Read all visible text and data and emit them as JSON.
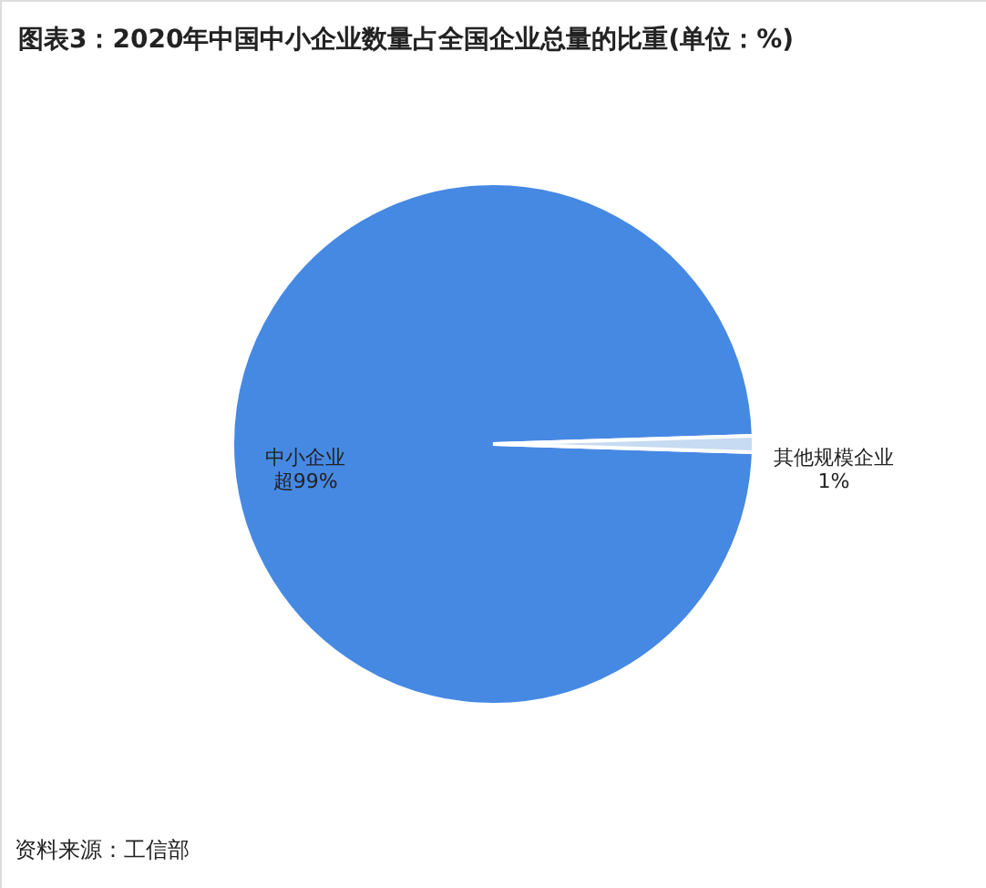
{
  "chart_data": {
    "type": "pie",
    "title": "图表3：2020年中国中小企业数量占全国企业总量的比重(单位：%)",
    "categories": [
      "中小企业",
      "其他规模企业"
    ],
    "values": [
      99,
      1
    ],
    "value_labels": [
      "超99%",
      "1%"
    ],
    "colors": [
      "#4689e3",
      "#c7dbf2"
    ],
    "annotations": [
      "资料来源：工信部"
    ]
  }
}
